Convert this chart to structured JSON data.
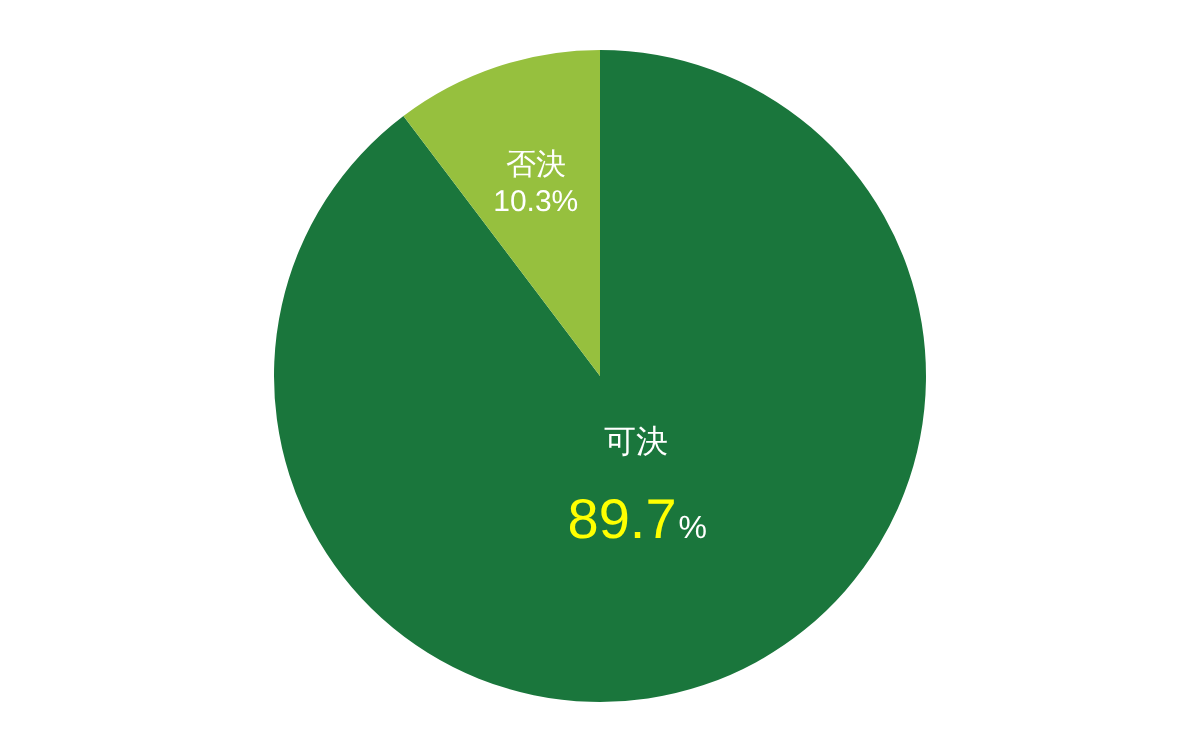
{
  "chart_data": {
    "type": "pie",
    "categories": [
      "可決",
      "否決"
    ],
    "values": [
      89.7,
      10.3
    ],
    "colors": [
      "#1a763c",
      "#96c03e"
    ],
    "value_labels": [
      "89.7%",
      "10.3%"
    ],
    "legend": false
  }
}
